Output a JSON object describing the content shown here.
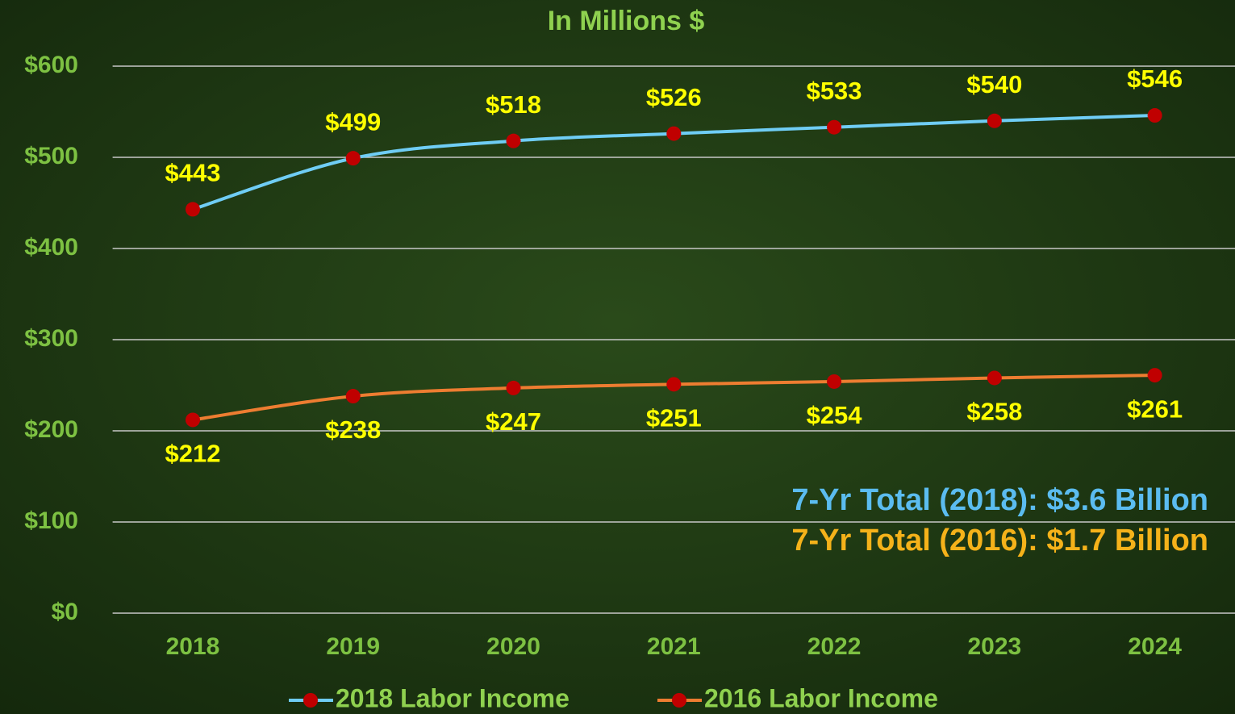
{
  "chart_data": {
    "type": "line",
    "title": "In Millions $",
    "categories": [
      "2018",
      "2019",
      "2020",
      "2021",
      "2022",
      "2023",
      "2024"
    ],
    "series": [
      {
        "name": "2018 Labor Income",
        "color": "#6fcdf5",
        "marker_color": "#c00000",
        "label_position": "above",
        "values": [
          443,
          499,
          518,
          526,
          533,
          540,
          546
        ],
        "value_labels": [
          "$443",
          "$499",
          "$518",
          "$526",
          "$533",
          "$540",
          "$546"
        ]
      },
      {
        "name": "2016 Labor Income",
        "color": "#ed7d31",
        "marker_color": "#c00000",
        "label_position": "below",
        "values": [
          212,
          238,
          247,
          251,
          254,
          258,
          261
        ],
        "value_labels": [
          "$212",
          "$238",
          "$247",
          "$251",
          "$254",
          "$258",
          "$261"
        ]
      }
    ],
    "ylim": [
      0,
      600
    ],
    "yticks": [
      {
        "value": 0,
        "label": "$0"
      },
      {
        "value": 100,
        "label": "$100"
      },
      {
        "value": 200,
        "label": "$200"
      },
      {
        "value": 300,
        "label": "$300"
      },
      {
        "value": 400,
        "label": "$400"
      },
      {
        "value": 500,
        "label": "$500"
      },
      {
        "value": 600,
        "label": "$600"
      }
    ],
    "grid": true,
    "smooth": true,
    "legend": "bottom",
    "annotations": [
      {
        "text": "7-Yr Total (2018): $3.6 Billion",
        "color": "#5bbcf0"
      },
      {
        "text": "7-Yr Total (2016): $1.7 Billion",
        "color": "#f5b21a"
      }
    ]
  }
}
